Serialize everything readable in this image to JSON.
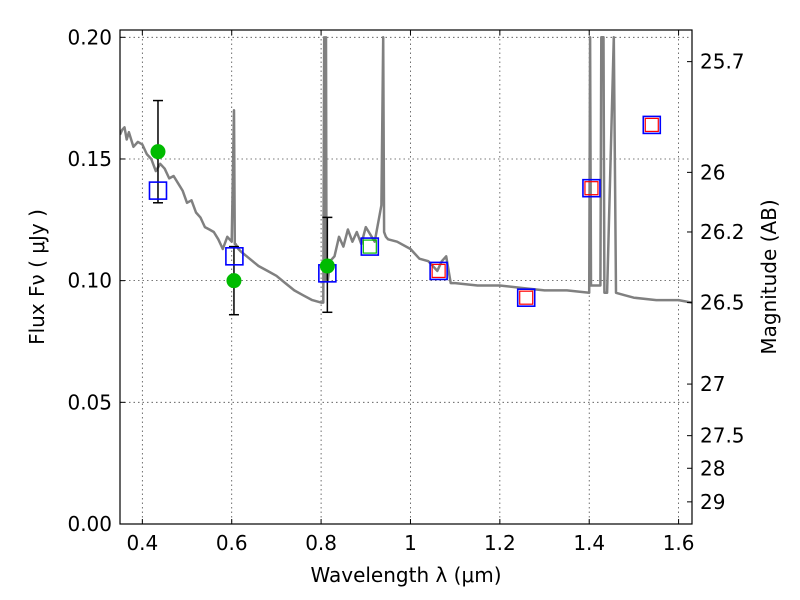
{
  "chart_data": {
    "type": "scatter",
    "xlabel": "Wavelength  λ (μm)",
    "ylabel": "Flux  Fν  ( μJy )",
    "y2label": "Magnitude (AB)",
    "xlim": [
      0.35,
      1.63
    ],
    "ylim": [
      0.0,
      0.203
    ],
    "x_ticks": [
      0.4,
      0.6,
      0.8,
      1.0,
      1.2,
      1.4,
      1.6
    ],
    "x_tick_labels": [
      "0.4",
      "0.6",
      "0.8",
      "1",
      "1.2",
      "1.4",
      "1.6"
    ],
    "y_ticks": [
      0.0,
      0.05,
      0.1,
      0.15,
      0.2
    ],
    "y_tick_labels": [
      "0.00",
      "0.05",
      "0.10",
      "0.15",
      "0.20"
    ],
    "y2_ticks": [
      {
        "label": "25.7",
        "flux": 0.19
      },
      {
        "label": "26",
        "flux": 0.1445
      },
      {
        "label": "26.2",
        "flux": 0.12
      },
      {
        "label": "26.5",
        "flux": 0.091
      },
      {
        "label": "27",
        "flux": 0.0575
      },
      {
        "label": "27.5",
        "flux": 0.0363
      },
      {
        "label": "28",
        "flux": 0.0229
      },
      {
        "label": "29",
        "flux": 0.0091
      }
    ],
    "grid": true,
    "colors": {
      "model": "#808080",
      "observed": "#00bb00",
      "blue_box": "#0000ff",
      "red_box": "#ff0000",
      "green_box": "#00bb00",
      "errorbar": "#000000"
    },
    "model_spectrum": {
      "x": [
        0.35,
        0.355,
        0.36,
        0.365,
        0.37,
        0.38,
        0.39,
        0.4,
        0.41,
        0.42,
        0.43,
        0.44,
        0.45,
        0.46,
        0.47,
        0.48,
        0.49,
        0.5,
        0.51,
        0.52,
        0.53,
        0.54,
        0.55,
        0.56,
        0.57,
        0.58,
        0.59,
        0.6,
        0.605,
        0.607,
        0.609,
        0.615,
        0.62,
        0.64,
        0.66,
        0.68,
        0.7,
        0.72,
        0.74,
        0.76,
        0.78,
        0.8,
        0.805,
        0.807,
        0.809,
        0.811,
        0.812,
        0.815,
        0.82,
        0.83,
        0.84,
        0.85,
        0.86,
        0.87,
        0.88,
        0.89,
        0.9,
        0.92,
        0.935,
        0.939,
        0.941,
        0.943,
        0.945,
        0.95,
        0.97,
        1.0,
        1.02,
        1.04,
        1.06,
        1.07,
        1.08,
        1.09,
        1.1,
        1.15,
        1.2,
        1.25,
        1.3,
        1.35,
        1.4,
        1.402,
        1.404,
        1.41,
        1.425,
        1.427,
        1.432,
        1.434,
        1.44,
        1.455,
        1.46,
        1.48,
        1.5,
        1.55,
        1.6,
        1.63
      ],
      "y": [
        0.16,
        0.162,
        0.163,
        0.158,
        0.161,
        0.155,
        0.157,
        0.156,
        0.152,
        0.15,
        0.145,
        0.148,
        0.146,
        0.142,
        0.143,
        0.14,
        0.137,
        0.132,
        0.133,
        0.128,
        0.126,
        0.122,
        0.121,
        0.12,
        0.117,
        0.113,
        0.118,
        0.116,
        0.17,
        0.115,
        0.115,
        0.113,
        0.112,
        0.109,
        0.106,
        0.104,
        0.102,
        0.099,
        0.096,
        0.094,
        0.092,
        0.091,
        0.091,
        0.2,
        0.1,
        0.2,
        0.105,
        0.1,
        0.108,
        0.11,
        0.118,
        0.114,
        0.121,
        0.116,
        0.12,
        0.115,
        0.122,
        0.116,
        0.131,
        0.2,
        0.12,
        0.119,
        0.118,
        0.117,
        0.116,
        0.113,
        0.109,
        0.108,
        0.104,
        0.108,
        0.11,
        0.099,
        0.099,
        0.098,
        0.098,
        0.097,
        0.096,
        0.096,
        0.095,
        0.2,
        0.098,
        0.098,
        0.098,
        0.2,
        0.2,
        0.095,
        0.095,
        0.2,
        0.095,
        0.094,
        0.093,
        0.092,
        0.092,
        0.091
      ]
    },
    "observed_points": [
      {
        "x": 0.435,
        "y": 0.153,
        "yerr_low": 0.132,
        "yerr_high": 0.174
      },
      {
        "x": 0.605,
        "y": 0.1,
        "yerr_low": 0.086,
        "yerr_high": 0.114
      },
      {
        "x": 0.814,
        "y": 0.106,
        "yerr_low": 0.087,
        "yerr_high": 0.126
      }
    ],
    "model_bandpass_points": [
      {
        "x": 0.435,
        "y": 0.137
      },
      {
        "x": 0.606,
        "y": 0.11
      },
      {
        "x": 0.814,
        "y": 0.103
      },
      {
        "x": 0.909,
        "y": 0.114
      },
      {
        "x": 1.063,
        "y": 0.104
      },
      {
        "x": 1.259,
        "y": 0.093
      },
      {
        "x": 1.405,
        "y": 0.138
      },
      {
        "x": 1.54,
        "y": 0.164
      }
    ],
    "photometry_boxes": [
      {
        "x": 0.909,
        "y": 0.114,
        "color": "#00bb00"
      },
      {
        "x": 1.063,
        "y": 0.104,
        "color": "#ff0000"
      },
      {
        "x": 1.259,
        "y": 0.093,
        "color": "#ff0000"
      },
      {
        "x": 1.405,
        "y": 0.138,
        "color": "#ff0000"
      },
      {
        "x": 1.54,
        "y": 0.164,
        "color": "#ff0000"
      }
    ]
  }
}
